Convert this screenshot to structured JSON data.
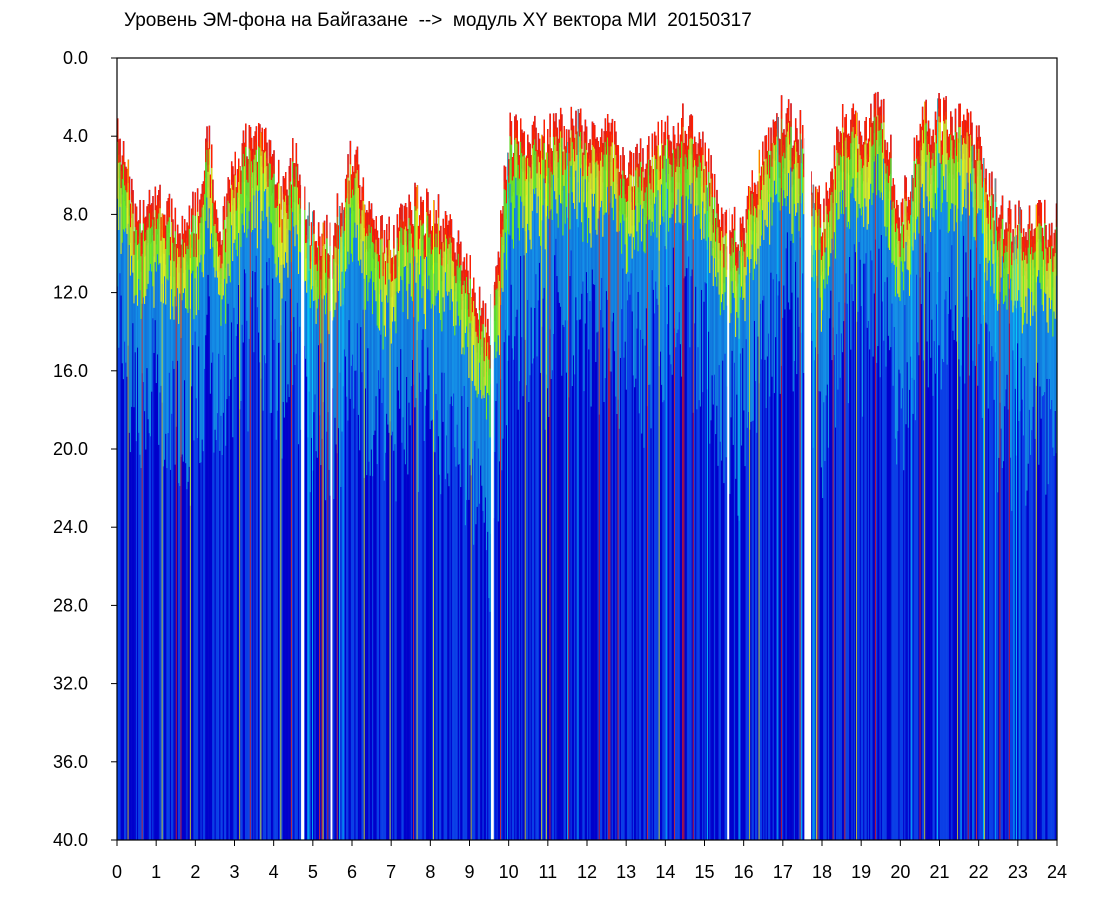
{
  "chart_data": {
    "type": "heatmap",
    "title": "Уровень ЭМ-фона на Байгазане  -->  модуль XY вектора МИ  20150317",
    "xlabel": "",
    "ylabel": "",
    "xlim": [
      0,
      24
    ],
    "ylim": [
      40.0,
      0.0
    ],
    "x_ticks": [
      "0",
      "1",
      "2",
      "3",
      "4",
      "5",
      "6",
      "7",
      "8",
      "9",
      "10",
      "11",
      "12",
      "13",
      "14",
      "15",
      "16",
      "17",
      "18",
      "19",
      "20",
      "21",
      "22",
      "23",
      "24"
    ],
    "y_ticks": [
      "0.0",
      "4.0",
      "8.0",
      "12.0",
      "16.0",
      "20.0",
      "24.0",
      "28.0",
      "32.0",
      "36.0",
      "40.0"
    ],
    "colormap": [
      "#0000cc",
      "#0a3fe6",
      "#19b6e6",
      "#00e5ff",
      "#7fff00",
      "#ffff00",
      "#ff2000"
    ],
    "gaps_hours": [
      [
        4.7,
        4.78
      ],
      [
        5.45,
        5.5
      ],
      [
        9.55,
        9.62
      ],
      [
        15.58,
        15.62
      ],
      [
        17.55,
        17.72
      ]
    ],
    "hourly_top_level": [
      {
        "hour": 0.0,
        "top": 4.0
      },
      {
        "hour": 0.5,
        "top": 8.5
      },
      {
        "hour": 1.0,
        "top": 7.5
      },
      {
        "hour": 1.5,
        "top": 8.5
      },
      {
        "hour": 2.0,
        "top": 8.0
      },
      {
        "hour": 2.3,
        "top": 4.0
      },
      {
        "hour": 2.6,
        "top": 9.0
      },
      {
        "hour": 3.0,
        "top": 5.5
      },
      {
        "hour": 3.3,
        "top": 4.5
      },
      {
        "hour": 3.7,
        "top": 4.0
      },
      {
        "hour": 4.2,
        "top": 7.0
      },
      {
        "hour": 4.5,
        "top": 5.0
      },
      {
        "hour": 5.0,
        "top": 9.0
      },
      {
        "hour": 5.5,
        "top": 9.0
      },
      {
        "hour": 6.0,
        "top": 4.5
      },
      {
        "hour": 6.5,
        "top": 8.5
      },
      {
        "hour": 7.0,
        "top": 9.5
      },
      {
        "hour": 7.5,
        "top": 7.5
      },
      {
        "hour": 8.0,
        "top": 8.0
      },
      {
        "hour": 8.5,
        "top": 8.5
      },
      {
        "hour": 9.0,
        "top": 11.0
      },
      {
        "hour": 9.5,
        "top": 14.0
      },
      {
        "hour": 10.0,
        "top": 4.0
      },
      {
        "hour": 10.5,
        "top": 4.0
      },
      {
        "hour": 11.0,
        "top": 4.0
      },
      {
        "hour": 11.5,
        "top": 3.5
      },
      {
        "hour": 12.0,
        "top": 4.0
      },
      {
        "hour": 12.5,
        "top": 3.0
      },
      {
        "hour": 13.0,
        "top": 6.0
      },
      {
        "hour": 13.5,
        "top": 5.0
      },
      {
        "hour": 14.0,
        "top": 4.0
      },
      {
        "hour": 14.5,
        "top": 3.5
      },
      {
        "hour": 15.0,
        "top": 5.0
      },
      {
        "hour": 15.5,
        "top": 9.0
      },
      {
        "hour": 16.0,
        "top": 8.5
      },
      {
        "hour": 16.5,
        "top": 4.5
      },
      {
        "hour": 17.0,
        "top": 3.0
      },
      {
        "hour": 17.5,
        "top": 4.0
      },
      {
        "hour": 18.0,
        "top": 8.5
      },
      {
        "hour": 18.5,
        "top": 3.0
      },
      {
        "hour": 19.0,
        "top": 3.5
      },
      {
        "hour": 19.5,
        "top": 2.5
      },
      {
        "hour": 20.0,
        "top": 8.0
      },
      {
        "hour": 20.5,
        "top": 3.5
      },
      {
        "hour": 21.0,
        "top": 3.0
      },
      {
        "hour": 21.5,
        "top": 3.0
      },
      {
        "hour": 22.0,
        "top": 4.5
      },
      {
        "hour": 22.5,
        "top": 8.0
      },
      {
        "hour": 23.0,
        "top": 8.5
      },
      {
        "hour": 23.5,
        "top": 8.5
      },
      {
        "hour": 24.0,
        "top": 8.5
      }
    ]
  }
}
